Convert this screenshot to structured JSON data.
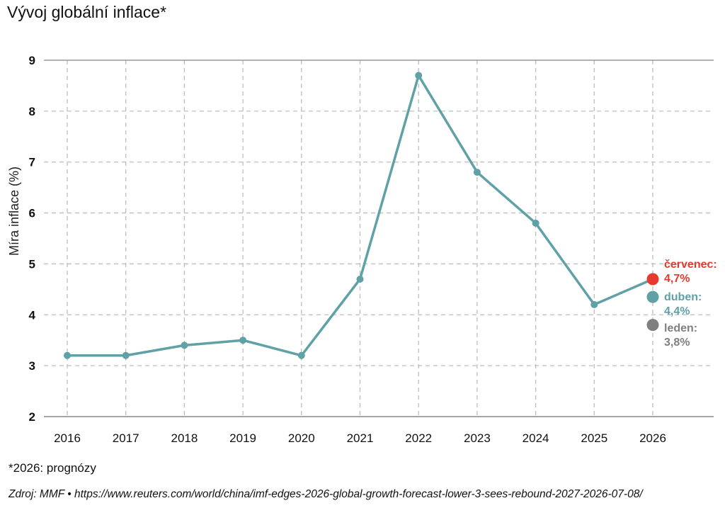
{
  "title": "Vývoj globální inflace*",
  "footnote": "*2026: prognózy",
  "source": "Zdroj: MMF • https://www.reuters.com/world/china/imf-edges-2026-global-growth-forecast-lower-3-sees-rebound-2027-2026-07-08/",
  "colors": {
    "line": "#5fa1a6",
    "red": "#e63a2e",
    "gray": "#7f7f7f",
    "grid": "#bdbdbd",
    "axis": "#888888"
  },
  "chart_data": {
    "type": "line",
    "ylabel": "Míra inflace (%)",
    "xlabel": "",
    "ylim": [
      2,
      9
    ],
    "yticks": [
      2,
      3,
      4,
      5,
      6,
      7,
      8,
      9
    ],
    "categories": [
      "2016",
      "2017",
      "2018",
      "2019",
      "2020",
      "2021",
      "2022",
      "2023",
      "2024",
      "2025",
      "2026"
    ],
    "grid": true,
    "series": [
      {
        "values": [
          3.2,
          3.2,
          3.4,
          3.5,
          3.2,
          4.7,
          8.7,
          6.8,
          5.8,
          4.2,
          4.7
        ]
      }
    ],
    "forecasts": [
      {
        "label": "červenec:",
        "value_label": "4,7%",
        "value": 4.7,
        "color": "#e63a2e"
      },
      {
        "label": "duben:",
        "value_label": "4,4%",
        "value": 4.35,
        "color": "#5fa1a6"
      },
      {
        "label": "leden:",
        "value_label": "3,8%",
        "value": 3.8,
        "color": "#7f7f7f"
      }
    ]
  }
}
